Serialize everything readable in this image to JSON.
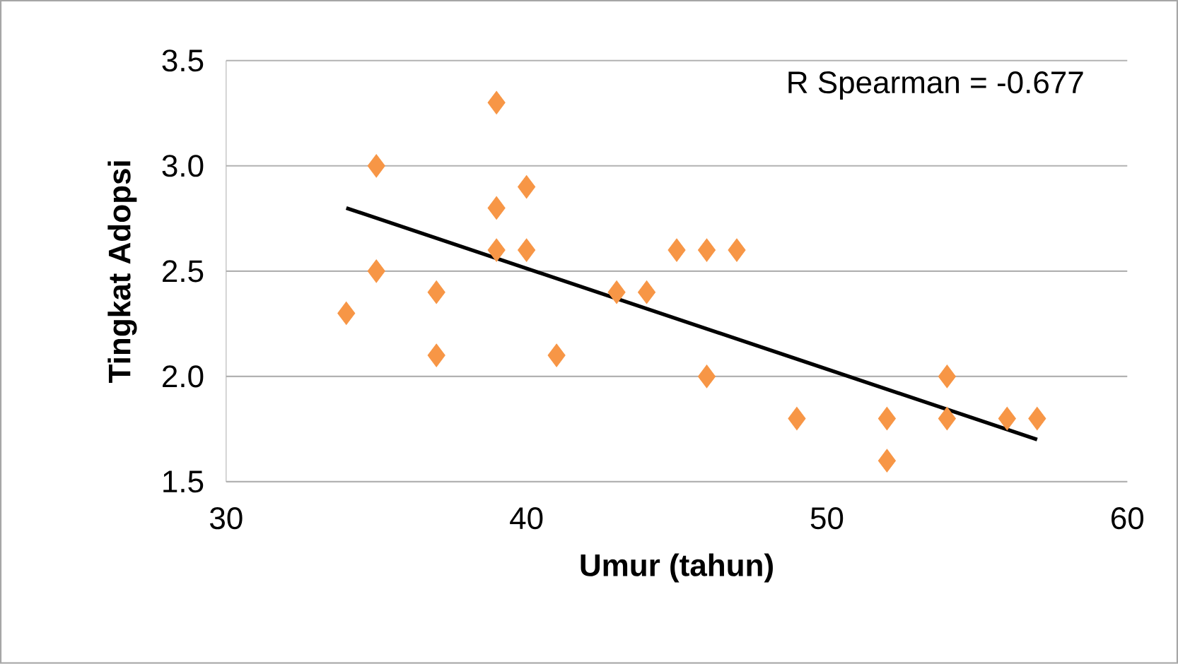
{
  "chart_data": {
    "type": "scatter",
    "xlabel": "Umur (tahun)",
    "ylabel": "Tingkat Adopsi",
    "annotations": [
      "R Spearman = -0.677"
    ],
    "series": [
      {
        "color": "#f79646",
        "marker": "diamond",
        "x": [
          34,
          35,
          35,
          37,
          37,
          39,
          39,
          39,
          40,
          40,
          41,
          43,
          44,
          45,
          46,
          46,
          47,
          49,
          52,
          52,
          54,
          54,
          56,
          57
        ],
        "values": [
          2.3,
          3.0,
          2.5,
          2.4,
          2.1,
          3.3,
          2.8,
          2.6,
          2.9,
          2.6,
          2.1,
          2.4,
          2.4,
          2.6,
          2.6,
          2.0,
          2.6,
          1.8,
          1.8,
          1.6,
          2.0,
          1.8,
          1.8,
          1.8
        ]
      },
      {
        "type": "line",
        "color": "#000000",
        "marker": "none",
        "x": [
          34,
          57
        ],
        "values": [
          2.8,
          1.7
        ]
      }
    ],
    "xlim": [
      30,
      60
    ],
    "xticks": [
      30,
      40,
      50,
      60
    ],
    "ylim": [
      1.5,
      3.5
    ],
    "yticks": [
      {
        "value": 1.5,
        "label": "1.5"
      },
      {
        "value": 2.0,
        "label": "2.0"
      },
      {
        "value": 2.5,
        "label": "2.5"
      },
      {
        "value": 3.0,
        "label": "3.0"
      },
      {
        "value": 3.5,
        "label": "3.5"
      }
    ],
    "grid": "y"
  }
}
